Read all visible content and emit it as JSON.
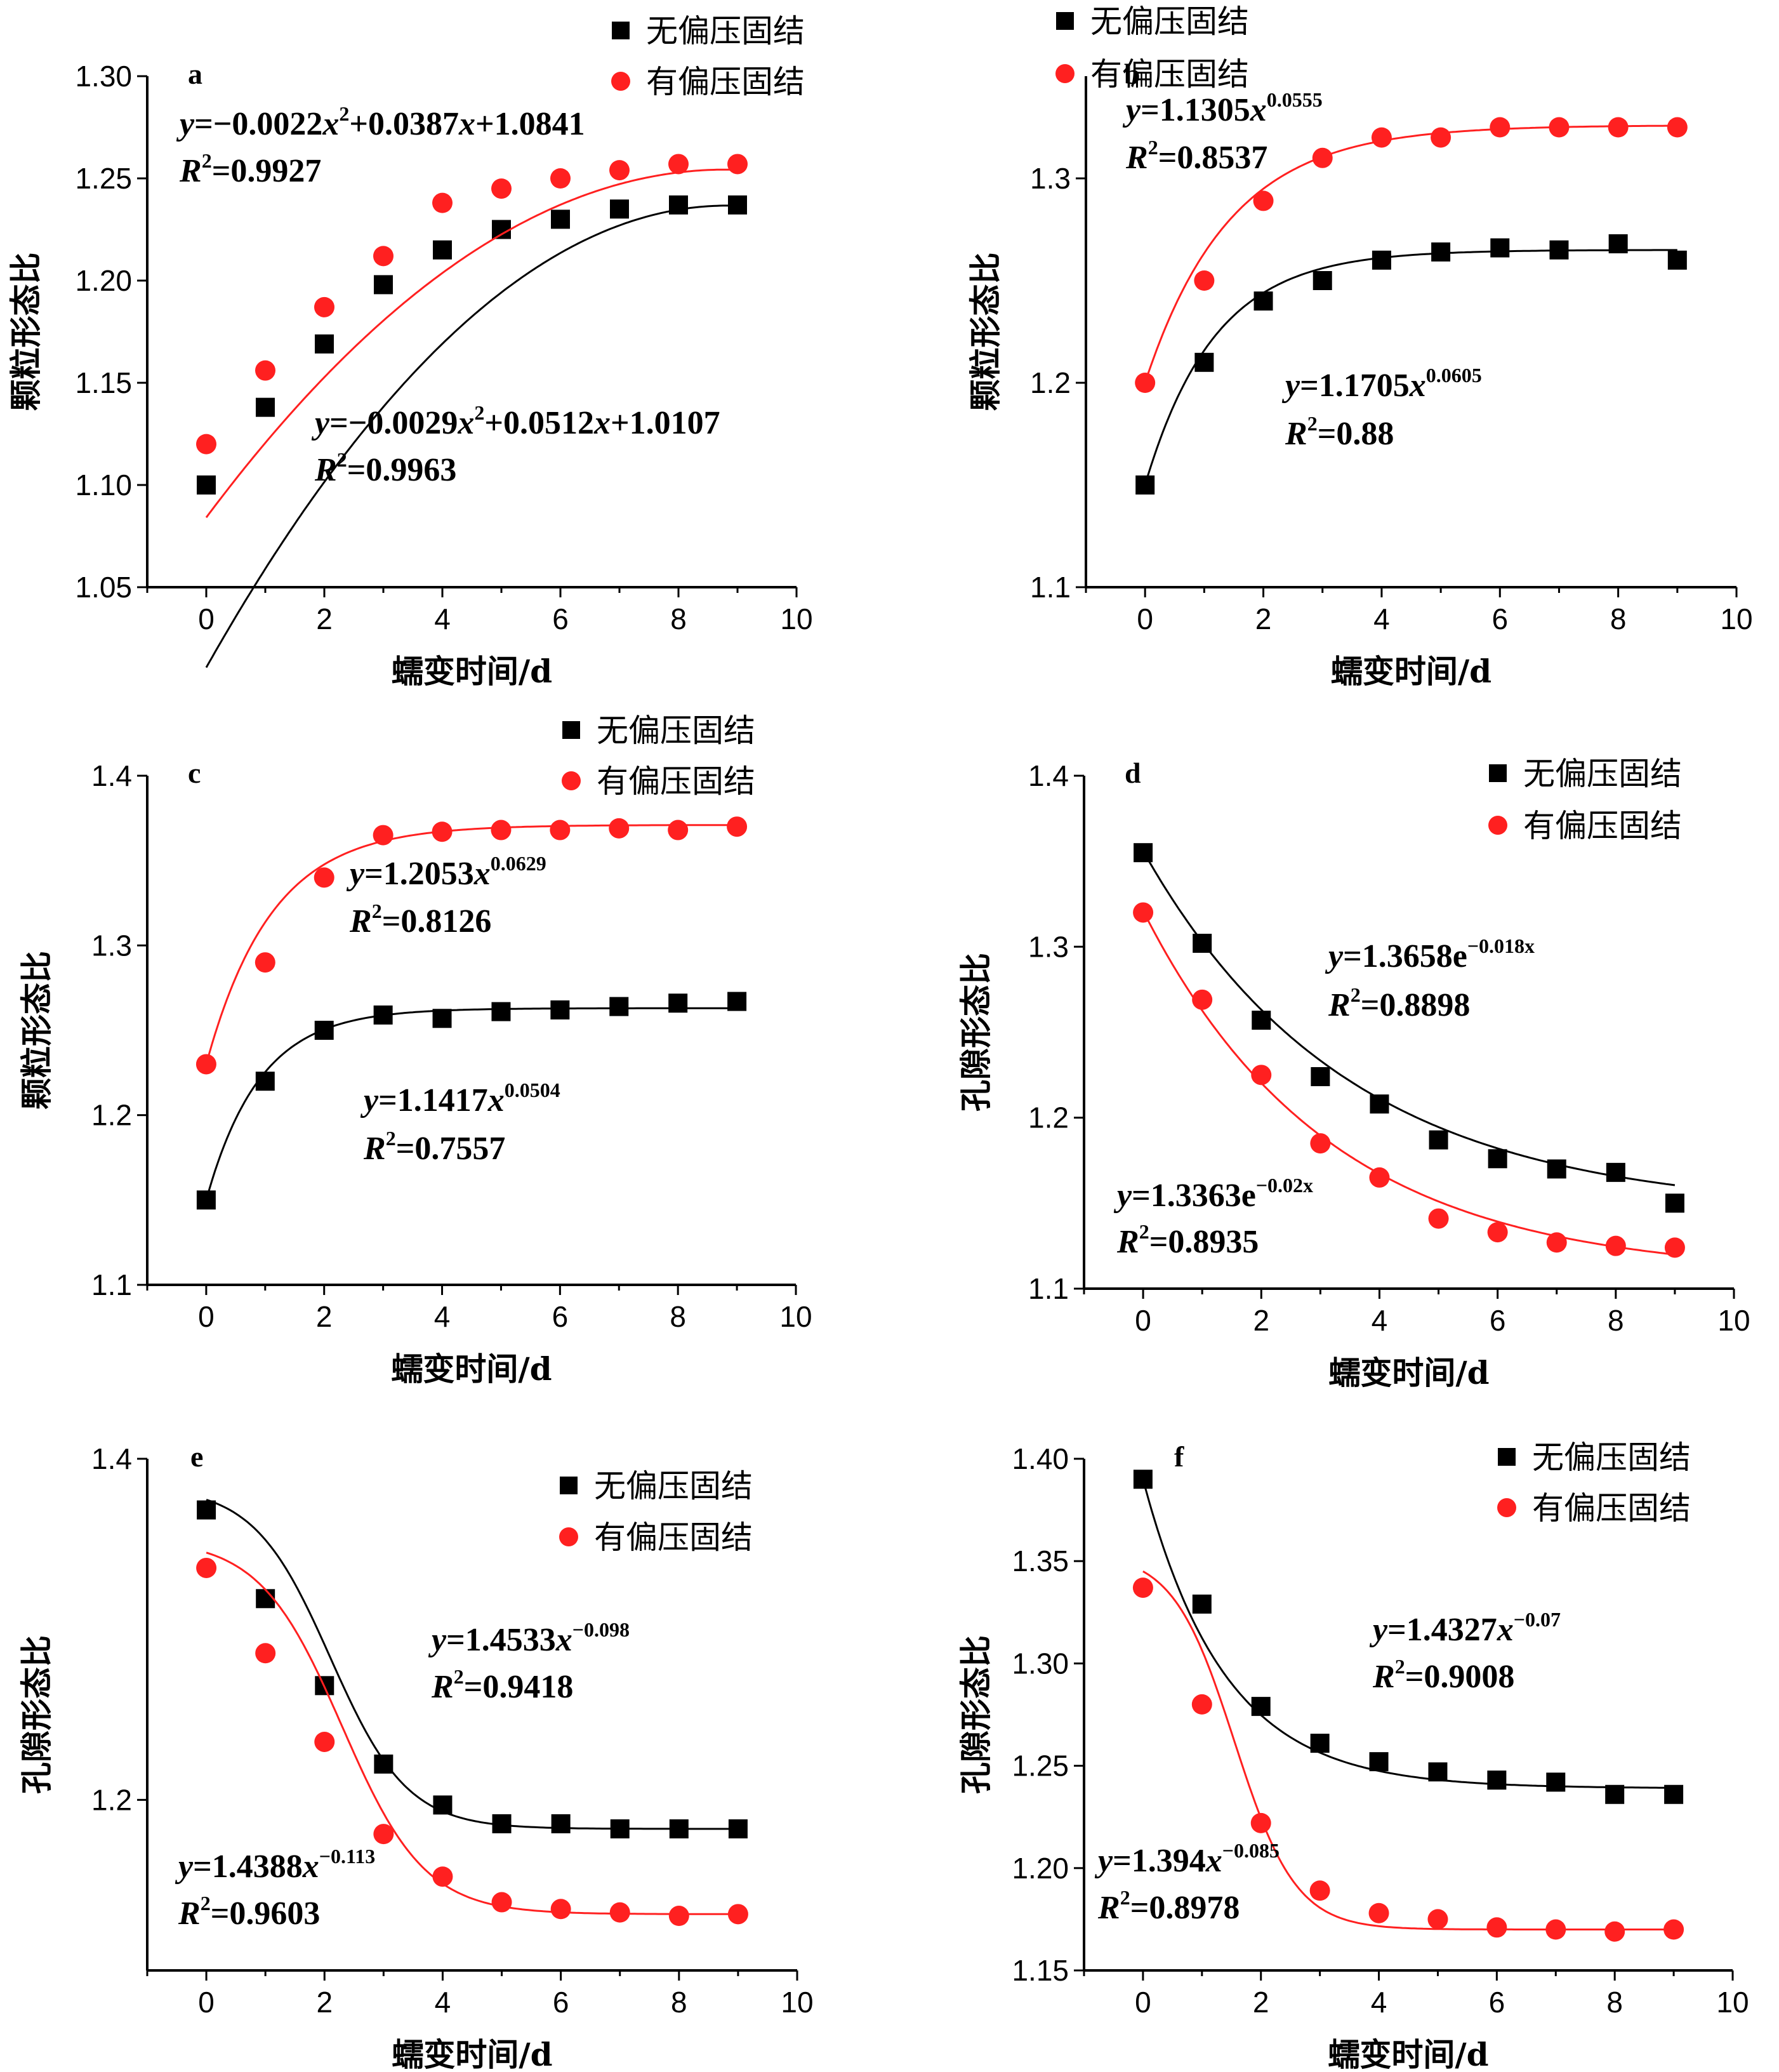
{
  "chart_data": [
    {
      "panel": "a",
      "type": "scatter",
      "x": [
        0,
        1,
        2,
        3,
        4,
        5,
        6,
        7,
        8,
        9
      ],
      "xlabel": "蠕变时间/d",
      "ylabel": "颗粒形态比",
      "xlim": [
        -1,
        10
      ],
      "ylim": [
        1.05,
        1.3
      ],
      "xticks": [
        "0",
        "2",
        "4",
        "6",
        "8",
        "10"
      ],
      "yticks": [
        "1.05",
        "1.10",
        "1.15",
        "1.20",
        "1.25",
        "1.30"
      ],
      "legend_position": "top-right",
      "series": [
        {
          "name": "无偏压固结",
          "marker": "square",
          "color": "#000000",
          "values": [
            1.1,
            1.138,
            1.169,
            1.198,
            1.215,
            1.225,
            1.23,
            1.235,
            1.237,
            1.237
          ],
          "fit": {
            "model": "poly2",
            "params": [
              -0.0029,
              0.0512,
              1.0107
            ]
          },
          "equation": {
            "lhs": "y",
            "body": "=−0.0029x",
            "sup": "2",
            "rest": "+0.0512x+1.0107"
          },
          "r2": {
            "lhs": "R",
            "sup": "2",
            "rest": "=0.9963"
          }
        },
        {
          "name": "有偏压固结",
          "marker": "circle",
          "color": "#ff2020",
          "values": [
            1.12,
            1.156,
            1.187,
            1.212,
            1.238,
            1.245,
            1.25,
            1.254,
            1.257,
            1.257
          ],
          "fit": {
            "model": "poly2",
            "params": [
              -0.0022,
              0.0387,
              1.0841
            ]
          },
          "equation": {
            "lhs": "y",
            "body": "=−0.0022x",
            "sup": "2",
            "rest": "+0.0387x+1.0841"
          },
          "r2": {
            "lhs": "R",
            "sup": "2",
            "rest": "=0.9927"
          }
        }
      ]
    },
    {
      "panel": "b",
      "type": "scatter",
      "x": [
        0,
        1,
        2,
        3,
        4,
        5,
        6,
        7,
        8,
        9
      ],
      "xlabel": "蠕变时间/d",
      "ylabel": "颗粒形态比",
      "xlim": [
        -1,
        10
      ],
      "ylim": [
        1.1,
        1.35
      ],
      "xticks": [
        "0",
        "2",
        "4",
        "6",
        "8",
        "10"
      ],
      "yticks": [
        "1.1",
        "1.2",
        "1.3"
      ],
      "legend_position": "top-right",
      "series": [
        {
          "name": "无偏压固结",
          "marker": "square",
          "color": "#000000",
          "values": [
            1.15,
            1.21,
            1.24,
            1.25,
            1.26,
            1.264,
            1.266,
            1.265,
            1.268,
            1.26
          ],
          "fit": {
            "model": "sat",
            "params": [
              1.15,
              1.265,
              0.85
            ]
          },
          "equation": {
            "lhs": "y",
            "body": "=1.1705x",
            "sup": "0.0605",
            "rest": ""
          },
          "r2": {
            "lhs": "R",
            "sup": "2",
            "rest": "=0.88"
          }
        },
        {
          "name": "有偏压固结",
          "marker": "circle",
          "color": "#ff2020",
          "values": [
            1.2,
            1.25,
            1.289,
            1.31,
            1.32,
            1.32,
            1.325,
            1.325,
            1.325,
            1.325
          ],
          "fit": {
            "model": "sat",
            "params": [
              1.2,
              1.326,
              0.7
            ]
          },
          "equation": {
            "lhs": "y",
            "body": "=1.1305x",
            "sup": "0.0555",
            "rest": ""
          },
          "r2": {
            "lhs": "R",
            "sup": "2",
            "rest": "=0.8537"
          }
        }
      ]
    },
    {
      "panel": "c",
      "type": "scatter",
      "x": [
        0,
        1,
        2,
        3,
        4,
        5,
        6,
        7,
        8,
        9
      ],
      "xlabel": "蠕变时间/d",
      "ylabel": "颗粒形态比",
      "xlim": [
        -1,
        10
      ],
      "ylim": [
        1.1,
        1.4
      ],
      "xticks": [
        "0",
        "2",
        "4",
        "6",
        "8",
        "10"
      ],
      "yticks": [
        "1.1",
        "1.2",
        "1.3",
        "1.4"
      ],
      "legend_position": "top-right",
      "series": [
        {
          "name": "无偏压固结",
          "marker": "square",
          "color": "#000000",
          "values": [
            1.15,
            1.22,
            1.25,
            1.259,
            1.257,
            1.261,
            1.262,
            1.264,
            1.266,
            1.267
          ],
          "fit": {
            "model": "sat",
            "params": [
              1.15,
              1.263,
              1.1
            ]
          },
          "equation": {
            "lhs": "y",
            "body": "=1.1417x",
            "sup": "0.0504",
            "rest": ""
          },
          "r2": {
            "lhs": "R",
            "sup": "2",
            "rest": "=0.7557"
          }
        },
        {
          "name": "有偏压固结",
          "marker": "circle",
          "color": "#ff2020",
          "values": [
            1.23,
            1.29,
            1.34,
            1.365,
            1.367,
            1.368,
            1.368,
            1.369,
            1.368,
            1.37
          ],
          "fit": {
            "model": "sat",
            "params": [
              1.23,
              1.371,
              0.9
            ]
          },
          "equation": {
            "lhs": "y",
            "body": "=1.2053x",
            "sup": "0.0629",
            "rest": ""
          },
          "r2": {
            "lhs": "R",
            "sup": "2",
            "rest": "=0.8126"
          }
        }
      ]
    },
    {
      "panel": "d",
      "type": "scatter",
      "x": [
        0,
        1,
        2,
        3,
        4,
        5,
        6,
        7,
        8,
        9
      ],
      "xlabel": "蠕变时间/d",
      "ylabel": "孔隙形态比",
      "xlim": [
        -1,
        10
      ],
      "ylim": [
        1.1,
        1.4
      ],
      "xticks": [
        "0",
        "2",
        "4",
        "6",
        "8",
        "10"
      ],
      "yticks": [
        "1.1",
        "1.2",
        "1.3",
        "1.4"
      ],
      "legend_position": "top-right",
      "series": [
        {
          "name": "无偏压固结",
          "marker": "square",
          "color": "#000000",
          "values": [
            1.355,
            1.302,
            1.257,
            1.224,
            1.208,
            1.187,
            1.176,
            1.17,
            1.168,
            1.15
          ],
          "fit": {
            "model": "sat",
            "params": [
              1.356,
              1.145,
              0.29
            ]
          },
          "equation": {
            "lhs": "y",
            "body": "=1.3658e",
            "sup": "−0.018x",
            "rest": ""
          },
          "r2": {
            "lhs": "R",
            "sup": "2",
            "rest": "=0.8898"
          }
        },
        {
          "name": "有偏压固结",
          "marker": "circle",
          "color": "#ff2020",
          "values": [
            1.32,
            1.269,
            1.225,
            1.185,
            1.165,
            1.141,
            1.133,
            1.127,
            1.125,
            1.124
          ],
          "fit": {
            "model": "sat",
            "params": [
              1.321,
              1.108,
              0.32
            ]
          },
          "equation": {
            "lhs": "y",
            "body": "=1.3363e",
            "sup": "−0.02x",
            "rest": ""
          },
          "r2": {
            "lhs": "R",
            "sup": "2",
            "rest": "=0.8935"
          }
        }
      ]
    },
    {
      "panel": "e",
      "type": "scatter",
      "x": [
        0,
        1,
        2,
        3,
        4,
        5,
        6,
        7,
        8,
        9
      ],
      "xlabel": "蠕变时间/d",
      "ylabel": "孔隙形态比",
      "xlim": [
        -1,
        10
      ],
      "ylim": [
        1.1,
        1.4
      ],
      "xticks": [
        "0",
        "2",
        "4",
        "6",
        "8",
        "10"
      ],
      "yticks": [
        "1.2",
        "1.4"
      ],
      "legend_position": "top-right",
      "series": [
        {
          "name": "无偏压固结",
          "marker": "square",
          "color": "#000000",
          "values": [
            1.37,
            1.318,
            1.267,
            1.221,
            1.197,
            1.186,
            1.186,
            1.183,
            1.183,
            1.183
          ],
          "fit": {
            "model": "logi",
            "params": [
              1.183,
              1.376,
              2.1,
              0.65
            ]
          },
          "equation": {
            "lhs": "y",
            "body": "=1.4533x",
            "sup": "−0.098",
            "rest": ""
          },
          "r2": {
            "lhs": "R",
            "sup": "2",
            "rest": "=0.9418"
          }
        },
        {
          "name": "有偏压固结",
          "marker": "circle",
          "color": "#ff2020",
          "values": [
            1.336,
            1.286,
            1.234,
            1.18,
            1.155,
            1.14,
            1.136,
            1.134,
            1.132,
            1.133
          ],
          "fit": {
            "model": "logi",
            "params": [
              1.133,
              1.345,
              2.3,
              0.7
            ]
          },
          "equation": {
            "lhs": "y",
            "body": "=1.4388x",
            "sup": "−0.113",
            "rest": ""
          },
          "r2": {
            "lhs": "R",
            "sup": "2",
            "rest": "=0.9603"
          }
        }
      ]
    },
    {
      "panel": "f",
      "type": "scatter",
      "x": [
        0,
        1,
        2,
        3,
        4,
        5,
        6,
        7,
        8,
        9
      ],
      "xlabel": "蠕变时间/d",
      "ylabel": "孔隙形态比",
      "xlim": [
        -1,
        10
      ],
      "ylim": [
        1.15,
        1.4
      ],
      "xticks": [
        "0",
        "2",
        "4",
        "6",
        "8",
        "10"
      ],
      "yticks": [
        "1.15",
        "1.20",
        "1.25",
        "1.30",
        "1.35",
        "1.40"
      ],
      "legend_position": "top-right",
      "series": [
        {
          "name": "无偏压固结",
          "marker": "square",
          "color": "#000000",
          "values": [
            1.39,
            1.329,
            1.279,
            1.261,
            1.252,
            1.247,
            1.243,
            1.242,
            1.236,
            1.236
          ],
          "fit": {
            "model": "sat",
            "params": [
              1.39,
              1.239,
              0.72
            ]
          },
          "equation": {
            "lhs": "y",
            "body": "=1.4327x",
            "sup": "−0.07",
            "rest": ""
          },
          "r2": {
            "lhs": "R",
            "sup": "2",
            "rest": "=0.9008"
          }
        },
        {
          "name": "有偏压固结",
          "marker": "circle",
          "color": "#ff2020",
          "values": [
            1.337,
            1.28,
            1.222,
            1.189,
            1.178,
            1.175,
            1.171,
            1.17,
            1.169,
            1.17
          ],
          "fit": {
            "model": "logi",
            "params": [
              1.17,
              1.345,
              1.55,
              0.52
            ]
          },
          "equation": {
            "lhs": "y",
            "body": "=1.394x",
            "sup": "−0.085",
            "rest": ""
          },
          "r2": {
            "lhs": "R",
            "sup": "2",
            "rest": "=0.8978"
          }
        }
      ]
    }
  ]
}
